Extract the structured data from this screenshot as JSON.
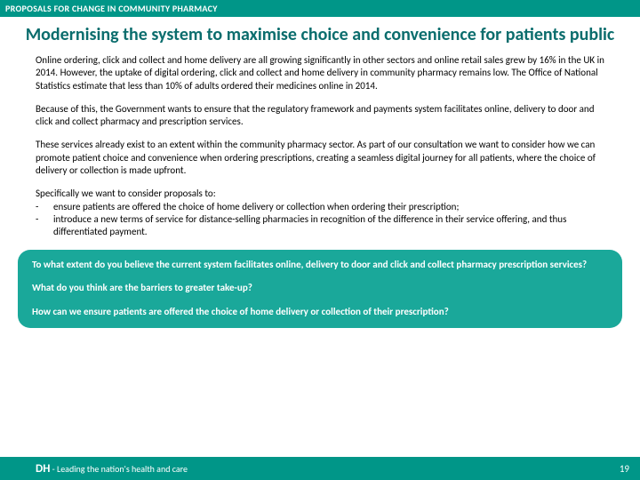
{
  "colors": {
    "brand": "#009688",
    "title": "#0b6d6d",
    "question_bg": "#1aa89a",
    "text": "#000000",
    "white": "#ffffff"
  },
  "header": {
    "label": "PROPOSALS FOR CHANGE IN COMMUNITY PHARMACY"
  },
  "title": "Modernising the system to maximise choice and convenience for patients public",
  "paragraphs": {
    "p1": "Online ordering, click and collect and home delivery are all growing significantly in other sectors and online retail sales grew by 16% in the UK in 2014. However, the uptake of digital ordering, click and collect and home delivery in community pharmacy remains low. The Office of National Statistics estimate that less than 10% of adults ordered their medicines online in 2014.",
    "p2": "Because of this, the Government wants to ensure that the regulatory framework and payments system facilitates online, delivery to door and click and collect pharmacy and prescription services.",
    "p3": "These services already exist to an extent within the community pharmacy sector. As part of our consultation we want to consider how we can promote patient choice and convenience when ordering prescriptions, creating a seamless digital journey for all patients, where the choice of delivery or collection is made upfront.",
    "p4_intro": "Specifically we want to consider proposals to:",
    "bullets": [
      "ensure patients are offered the choice of home delivery or collection when ordering their prescription;",
      "introduce a new terms of service for distance-selling pharmacies in recognition of the difference in their service offering, and thus differentiated payment."
    ]
  },
  "questions": {
    "q1": "To what extent do you believe the current system facilitates online, delivery to door and click and collect pharmacy prescription services?",
    "q2": "What do you think are the barriers to greater take-up?",
    "q3": "How can we ensure patients are offered the choice of home delivery or collection of their prescription?"
  },
  "footer": {
    "org": "DH",
    "tagline": " - Leading the nation's health and care",
    "page": "19"
  }
}
